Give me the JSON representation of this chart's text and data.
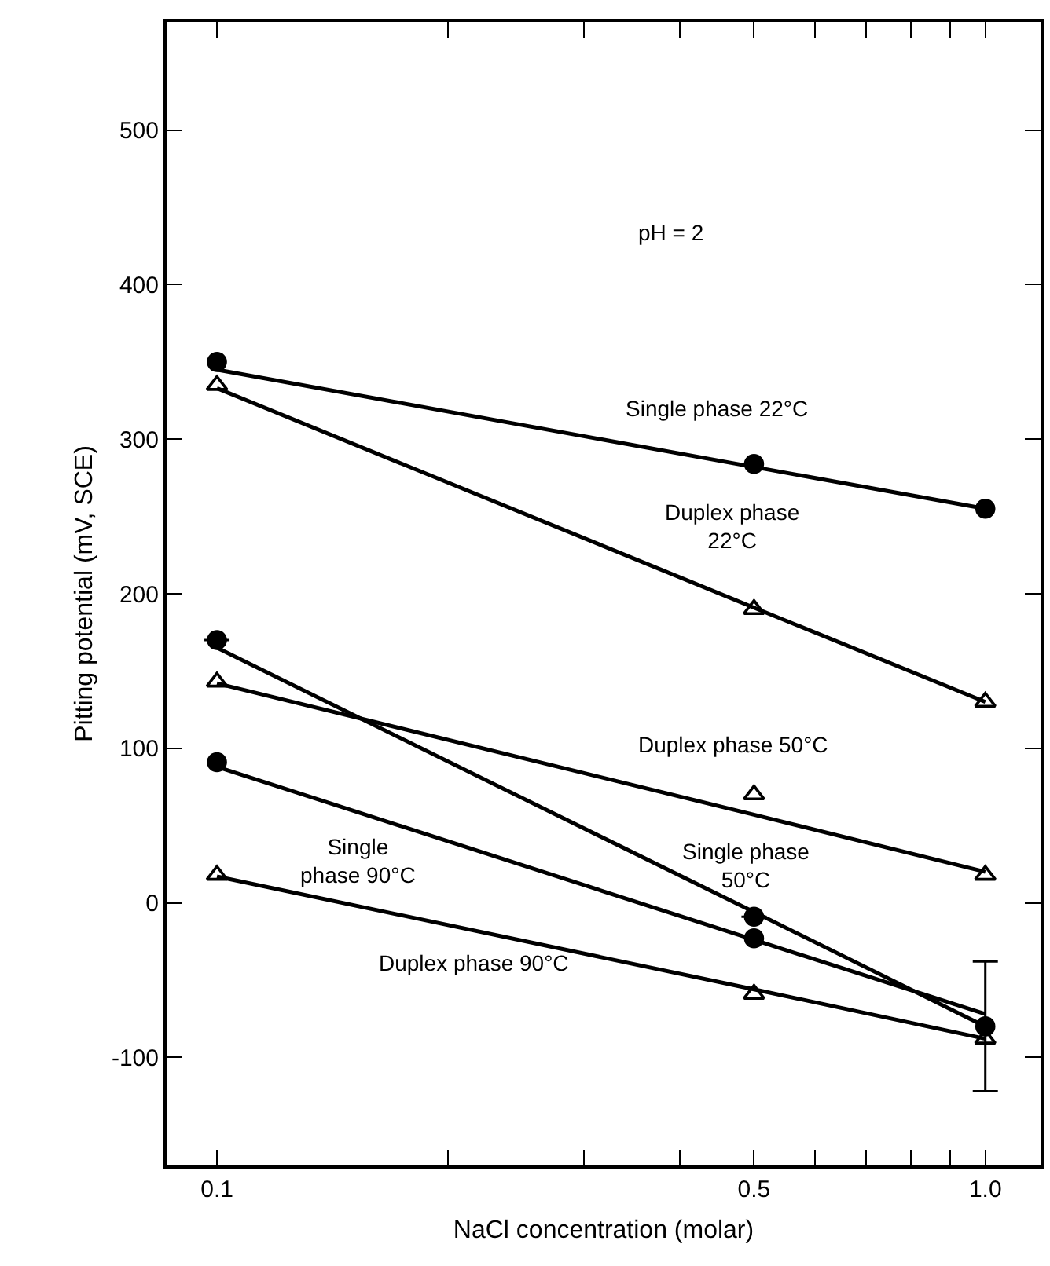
{
  "chart_data": {
    "type": "scatter",
    "xlabel": "NaCl concentration (molar)",
    "ylabel": "Pitting potential (mV, SCE)",
    "log": "x",
    "xlim": [
      0.086,
      1.18
    ],
    "ylim": [
      -170,
      570
    ],
    "xticks": [
      0.1,
      {
        "value": 0.2,
        "label": null
      },
      {
        "value": 0.3,
        "label": null
      },
      {
        "value": 0.4,
        "label": null
      },
      0.5,
      {
        "value": 0.6,
        "label": null
      },
      {
        "value": 0.7,
        "label": null
      },
      {
        "value": 0.8,
        "label": null
      },
      {
        "value": 0.9,
        "label": null
      },
      {
        "value": 1.0,
        "label": "1.0"
      }
    ],
    "yticks": [
      -100,
      0,
      100,
      200,
      300,
      400,
      500
    ],
    "grid": false,
    "x": [
      0.1,
      0.5,
      1.0
    ],
    "series": [
      {
        "marker": "circle",
        "color": "#000000",
        "values": [
          350,
          284,
          255
        ]
      },
      {
        "marker": "triangle",
        "color": "#000000",
        "values": [
          335,
          190,
          130
        ]
      },
      {
        "marker": "circle",
        "color": "#000000",
        "values": [
          170,
          -9,
          -80
        ],
        "errors": [
          null,
          null,
          42
        ]
      },
      {
        "marker": "triangle",
        "color": "#000000",
        "values": [
          143,
          70,
          18
        ]
      },
      {
        "marker": "circle",
        "color": "#000000",
        "values": [
          91,
          -23,
          null
        ]
      },
      {
        "marker": "triangle",
        "color": "#000000",
        "values": [
          18,
          -59,
          -88
        ]
      },
      {
        "type": "line",
        "marker": "none",
        "line_style": "solid",
        "color": "#000000",
        "values": [
          345,
          282,
          255
        ]
      },
      {
        "type": "line",
        "marker": "none",
        "line_style": "solid",
        "color": "#000000",
        "values": [
          333,
          191,
          130
        ]
      },
      {
        "type": "line",
        "marker": "none",
        "line_style": "solid",
        "color": "#000000",
        "values": [
          165,
          -6,
          -80
        ]
      },
      {
        "type": "line",
        "marker": "none",
        "line_style": "solid",
        "color": "#000000",
        "values": [
          142,
          57,
          20
        ]
      },
      {
        "type": "line",
        "marker": "none",
        "line_style": "solid",
        "color": "#000000",
        "values": [
          88,
          -24,
          -72
        ]
      },
      {
        "type": "line",
        "marker": "none",
        "line_style": "solid",
        "color": "#000000",
        "values": [
          17,
          -56,
          -88
        ]
      }
    ],
    "annotations": [
      "pH = 2",
      "Single phase 22°C",
      "Duplex phase\n22°C",
      "Duplex phase 50°C",
      "Single\nphase 90°C",
      "Single phase\n50°C",
      "Duplex phase 90°C"
    ]
  }
}
